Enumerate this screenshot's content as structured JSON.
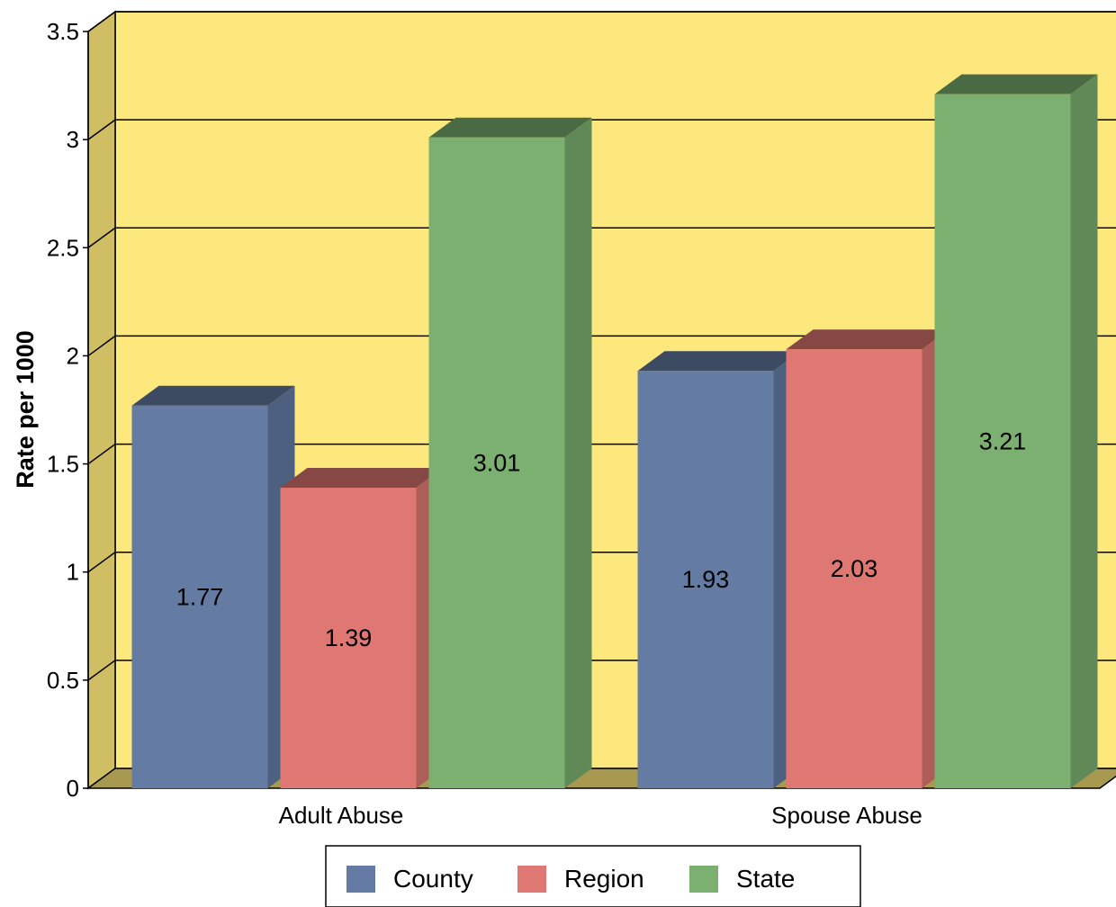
{
  "chart_data": {
    "type": "bar",
    "style": "3d-clustered",
    "title": "",
    "xlabel": "",
    "ylabel": "Rate per 1000",
    "ylim": [
      0,
      3.5
    ],
    "yticks": [
      "0",
      "0.5",
      "1",
      "1.5",
      "2",
      "2.5",
      "3",
      "3.5"
    ],
    "grid": true,
    "legend_position": "bottom",
    "categories": [
      "Adult Abuse",
      "Spouse Abuse"
    ],
    "series": [
      {
        "name": "County",
        "values": [
          1.77,
          1.93
        ],
        "labels": [
          "1.77",
          "1.93"
        ],
        "color": "#647ba3"
      },
      {
        "name": "Region",
        "values": [
          1.39,
          2.03
        ],
        "labels": [
          "1.39",
          "2.03"
        ],
        "color": "#df7872"
      },
      {
        "name": "State",
        "values": [
          3.01,
          3.21
        ],
        "labels": [
          "3.01",
          "3.21"
        ],
        "color": "#7cb070"
      }
    ],
    "wall_color": "#fde87e",
    "side_wall_color": "#cfbe63",
    "floor_color": "#a7994f"
  }
}
